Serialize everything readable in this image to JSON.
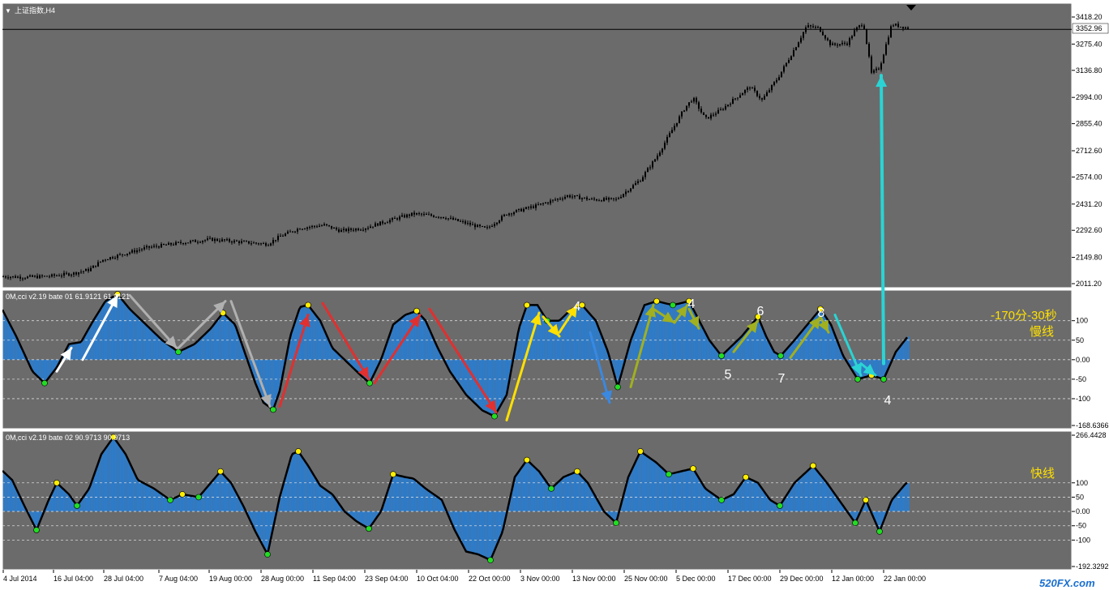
{
  "window": {
    "symbol_title": "上证指数,H4",
    "watermark": "520FX.com"
  },
  "colors": {
    "panel_bg": "#6b6b6b",
    "candle": "#000000",
    "hist": "#1e7fe0",
    "cci_line": "#000000",
    "dot_yellow": "#ffee00",
    "dot_green": "#22dd22",
    "white": "#ffffff",
    "annot_yellow": "#ffe000",
    "cyan": "#2ad4d4",
    "red": "#e03030",
    "olive": "#a0b020",
    "gray_arrow": "#b0b0b0",
    "blue_arrow": "#3a88e0"
  },
  "price_panel": {
    "current_price": "3352.96",
    "ticks": [
      "3418.20",
      "3275.40",
      "3136.80",
      "2994.00",
      "2855.40",
      "2712.60",
      "2574.00",
      "2431.20",
      "2292.60",
      "2149.80",
      "2011.20"
    ]
  },
  "cci1_panel": {
    "title": "0M,cci v2.19 bate 01 61.9121 61.9121",
    "ticks": [
      "100",
      "50",
      "0.00",
      "-50",
      "-100",
      "-168.6366"
    ],
    "annotation_line1": "-170分-30秒",
    "annotation_line2": "慢线",
    "wave_numbers": [
      {
        "label": "4",
        "t": 710
      },
      {
        "label": "4",
        "t": 851
      },
      {
        "label": "6",
        "t": 936
      },
      {
        "label": "8",
        "t": 1011
      },
      {
        "label": "5",
        "t": 896
      },
      {
        "label": "7",
        "t": 962
      },
      {
        "label": "4",
        "t": 1093
      }
    ]
  },
  "cci2_panel": {
    "title": "0M,cci v2.19 bate 02 90.9713 90.9713",
    "ticks": [
      "266.4428",
      "100",
      "50",
      "0.00",
      "-50",
      "-100",
      "-192.3292"
    ],
    "annotation": "快线"
  },
  "time_axis": [
    "4 Jul 2014",
    "16 Jul 04:00",
    "28 Jul 04:00",
    "7 Aug 04:00",
    "19 Aug 00:00",
    "28 Aug 00:00",
    "11 Sep 04:00",
    "23 Sep 04:00",
    "10 Oct 04:00",
    "22 Oct 00:00",
    "3 Nov 00:00",
    "13 Nov 00:00",
    "25 Nov 00:00",
    "5 Dec 00:00",
    "17 Dec 00:00",
    "29 Dec 00:00",
    "12 Jan 00:00",
    "22 Jan 00:00"
  ],
  "chart_data": [
    {
      "type": "candlestick",
      "title": "上证指数,H4",
      "ylim": [
        2011.2,
        3418.2
      ],
      "y_ticks": [
        3418.2,
        3275.4,
        3136.8,
        2994.0,
        2855.4,
        2712.6,
        2574.0,
        2431.2,
        2292.6,
        2149.8,
        2011.2
      ],
      "last_price": 3352.96,
      "x_tick_labels": [
        "4 Jul 2014",
        "16 Jul 04:00",
        "28 Jul 04:00",
        "7 Aug 04:00",
        "19 Aug 00:00",
        "28 Aug 00:00",
        "11 Sep 04:00",
        "23 Sep 04:00",
        "10 Oct 04:00",
        "22 Oct 00:00",
        "3 Nov 00:00",
        "13 Nov 00:00",
        "25 Nov 00:00",
        "5 Dec 00:00",
        "17 Dec 00:00",
        "29 Dec 00:00",
        "12 Jan 00:00",
        "22 Jan 00:00"
      ],
      "close_path": [
        [
          0,
          2050
        ],
        [
          30,
          2045
        ],
        [
          60,
          2050
        ],
        [
          90,
          2065
        ],
        [
          110,
          2085
        ],
        [
          128,
          2140
        ],
        [
          150,
          2165
        ],
        [
          180,
          2200
        ],
        [
          220,
          2225
        ],
        [
          260,
          2245
        ],
        [
          300,
          2230
        ],
        [
          330,
          2220
        ],
        [
          345,
          2260
        ],
        [
          370,
          2305
        ],
        [
          400,
          2320
        ],
        [
          420,
          2290
        ],
        [
          450,
          2305
        ],
        [
          480,
          2345
        ],
        [
          510,
          2380
        ],
        [
          545,
          2365
        ],
        [
          575,
          2330
        ],
        [
          600,
          2300
        ],
        [
          625,
          2380
        ],
        [
          660,
          2420
        ],
        [
          700,
          2475
        ],
        [
          730,
          2455
        ],
        [
          760,
          2455
        ],
        [
          790,
          2560
        ],
        [
          810,
          2680
        ],
        [
          830,
          2830
        ],
        [
          845,
          2940
        ],
        [
          855,
          2990
        ],
        [
          870,
          2880
        ],
        [
          890,
          2930
        ],
        [
          910,
          3000
        ],
        [
          925,
          3050
        ],
        [
          940,
          2980
        ],
        [
          960,
          3100
        ],
        [
          980,
          3250
        ],
        [
          995,
          3370
        ],
        [
          1010,
          3360
        ],
        [
          1025,
          3270
        ],
        [
          1045,
          3280
        ],
        [
          1055,
          3350
        ],
        [
          1065,
          3390
        ],
        [
          1075,
          3120
        ],
        [
          1085,
          3150
        ],
        [
          1100,
          3380
        ],
        [
          1120,
          3360
        ]
      ]
    },
    {
      "type": "line+histogram",
      "title": "0M,cci v2.19 bate 01 61.9121 61.9121",
      "ylim": [
        -168.6366,
        170
      ],
      "y_ticks": [
        100,
        50,
        0,
        -50,
        -100,
        -168.6366
      ],
      "current_value": 61.9121,
      "values": [
        [
          0,
          140
        ],
        [
          20,
          60
        ],
        [
          40,
          -30
        ],
        [
          55,
          -60
        ],
        [
          70,
          -20
        ],
        [
          85,
          40
        ],
        [
          100,
          45
        ],
        [
          115,
          100
        ],
        [
          130,
          150
        ],
        [
          145,
          168
        ],
        [
          160,
          130
        ],
        [
          180,
          90
        ],
        [
          200,
          50
        ],
        [
          220,
          20
        ],
        [
          240,
          40
        ],
        [
          260,
          80
        ],
        [
          275,
          120
        ],
        [
          290,
          90
        ],
        [
          300,
          30
        ],
        [
          315,
          -60
        ],
        [
          325,
          -110
        ],
        [
          337,
          -128
        ],
        [
          345,
          -80
        ],
        [
          358,
          60
        ],
        [
          370,
          135
        ],
        [
          380,
          140
        ],
        [
          395,
          100
        ],
        [
          410,
          30
        ],
        [
          430,
          -10
        ],
        [
          445,
          -40
        ],
        [
          456,
          -60
        ],
        [
          470,
          0
        ],
        [
          485,
          90
        ],
        [
          500,
          115
        ],
        [
          514,
          125
        ],
        [
          525,
          100
        ],
        [
          540,
          30
        ],
        [
          555,
          -30
        ],
        [
          575,
          -90
        ],
        [
          595,
          -130
        ],
        [
          610,
          -145
        ],
        [
          625,
          -90
        ],
        [
          640,
          80
        ],
        [
          650,
          140
        ],
        [
          663,
          140
        ],
        [
          675,
          100
        ],
        [
          690,
          100
        ],
        [
          705,
          130
        ],
        [
          718,
          140
        ],
        [
          735,
          100
        ],
        [
          750,
          20
        ],
        [
          762,
          -70
        ],
        [
          778,
          50
        ],
        [
          795,
          140
        ],
        [
          810,
          150
        ],
        [
          830,
          140
        ],
        [
          850,
          150
        ],
        [
          860,
          110
        ],
        [
          875,
          50
        ],
        [
          890,
          10
        ],
        [
          900,
          30
        ],
        [
          915,
          60
        ],
        [
          935,
          110
        ],
        [
          945,
          60
        ],
        [
          955,
          20
        ],
        [
          963,
          10
        ],
        [
          980,
          50
        ],
        [
          1000,
          100
        ],
        [
          1012,
          130
        ],
        [
          1025,
          90
        ],
        [
          1040,
          10
        ],
        [
          1058,
          -50
        ],
        [
          1075,
          -40
        ],
        [
          1090,
          -50
        ],
        [
          1105,
          20
        ],
        [
          1120,
          60
        ]
      ],
      "wave_labels": [
        "4",
        "4",
        "6",
        "8",
        "5",
        "7",
        "4"
      ],
      "annotations": [
        "-170分-30秒",
        "慢线"
      ]
    },
    {
      "type": "line+histogram",
      "title": "0M,cci v2.19 bate 02 90.9713 90.9713",
      "ylim": [
        -192.3292,
        266.4428
      ],
      "y_ticks": [
        266.4428,
        100,
        50,
        0,
        -50,
        -100,
        -192.3292
      ],
      "current_value": 90.9713,
      "values": [
        [
          0,
          150
        ],
        [
          15,
          110
        ],
        [
          30,
          20
        ],
        [
          45,
          -65
        ],
        [
          60,
          40
        ],
        [
          70,
          100
        ],
        [
          85,
          60
        ],
        [
          95,
          20
        ],
        [
          110,
          80
        ],
        [
          125,
          200
        ],
        [
          140,
          260
        ],
        [
          155,
          200
        ],
        [
          170,
          110
        ],
        [
          190,
          80
        ],
        [
          210,
          40
        ],
        [
          225,
          60
        ],
        [
          245,
          50
        ],
        [
          260,
          100
        ],
        [
          272,
          140
        ],
        [
          285,
          100
        ],
        [
          300,
          20
        ],
        [
          315,
          -70
        ],
        [
          330,
          -150
        ],
        [
          345,
          50
        ],
        [
          360,
          200
        ],
        [
          368,
          210
        ],
        [
          380,
          160
        ],
        [
          395,
          90
        ],
        [
          410,
          60
        ],
        [
          425,
          0
        ],
        [
          440,
          -35
        ],
        [
          455,
          -60
        ],
        [
          470,
          0
        ],
        [
          485,
          130
        ],
        [
          500,
          120
        ],
        [
          510,
          115
        ],
        [
          525,
          80
        ],
        [
          545,
          40
        ],
        [
          560,
          -60
        ],
        [
          575,
          -140
        ],
        [
          590,
          -150
        ],
        [
          605,
          -170
        ],
        [
          620,
          -70
        ],
        [
          635,
          120
        ],
        [
          650,
          180
        ],
        [
          665,
          140
        ],
        [
          680,
          80
        ],
        [
          695,
          120
        ],
        [
          712,
          140
        ],
        [
          725,
          100
        ],
        [
          745,
          0
        ],
        [
          760,
          -40
        ],
        [
          775,
          120
        ],
        [
          790,
          210
        ],
        [
          810,
          170
        ],
        [
          825,
          130
        ],
        [
          840,
          140
        ],
        [
          855,
          150
        ],
        [
          870,
          80
        ],
        [
          890,
          40
        ],
        [
          905,
          60
        ],
        [
          920,
          120
        ],
        [
          935,
          100
        ],
        [
          950,
          40
        ],
        [
          962,
          20
        ],
        [
          980,
          100
        ],
        [
          1003,
          160
        ],
        [
          1020,
          100
        ],
        [
          1040,
          20
        ],
        [
          1055,
          -40
        ],
        [
          1068,
          40
        ],
        [
          1085,
          -70
        ],
        [
          1100,
          40
        ],
        [
          1118,
          100
        ]
      ],
      "annotations": [
        "快线"
      ]
    }
  ]
}
